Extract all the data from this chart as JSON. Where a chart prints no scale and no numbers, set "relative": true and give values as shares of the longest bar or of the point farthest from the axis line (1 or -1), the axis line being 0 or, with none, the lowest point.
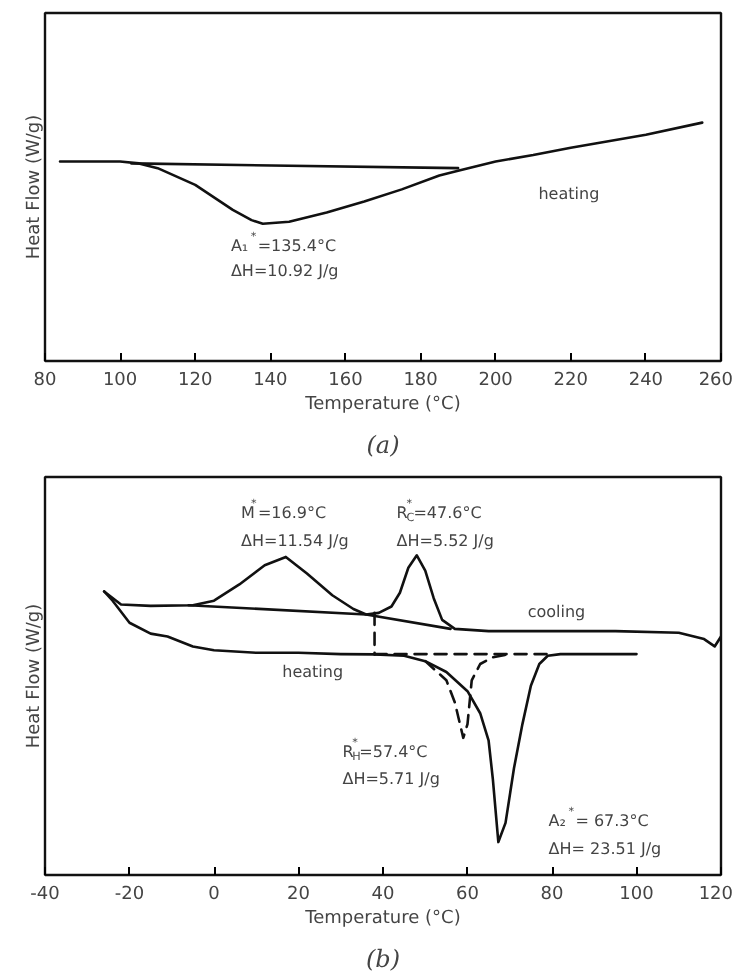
{
  "chart_data": [
    {
      "type": "line",
      "relative": true,
      "xlabel": "Temperature (°C)",
      "ylabel": "Heat Flow (W/g)",
      "xlim": [
        80,
        260
      ],
      "xticks": [
        80,
        100,
        120,
        140,
        160,
        180,
        200,
        220,
        240,
        260
      ],
      "marker": "none",
      "series": [
        {
          "color": "#111111",
          "line_style": "solid",
          "x": [
            84,
            100,
            105,
            110,
            120,
            130,
            135,
            138,
            145,
            155,
            165,
            175,
            185,
            190,
            200,
            210,
            220,
            230,
            240,
            255
          ],
          "values": [
            0.837,
            0.837,
            0.829,
            0.809,
            0.739,
            0.634,
            0.591,
            0.576,
            0.584,
            0.623,
            0.669,
            0.72,
            0.778,
            0.798,
            0.837,
            0.864,
            0.895,
            0.922,
            0.949,
            1.0
          ]
        },
        {
          "color": "#111111",
          "line_style": "solid",
          "x": [
            103,
            190
          ],
          "values": [
            0.829,
            0.809
          ]
        }
      ],
      "annotations": [
        "A₁$^{*}$=135.4°C",
        "ΔH=10.92 J/g",
        "heating",
        "(a)"
      ]
    },
    {
      "type": "line",
      "relative": true,
      "xlabel": "Temperature (°C)",
      "ylabel": "Heat Flow (W/g)",
      "xlim": [
        -40,
        120
      ],
      "xticks": [
        -40,
        -20,
        0,
        20,
        40,
        60,
        80,
        100,
        120
      ],
      "marker": "none",
      "series": [
        {
          "color": "#111111",
          "line_style": "solid",
          "x": [
            120,
            118.5,
            116,
            110,
            95,
            80,
            65,
            57,
            54,
            52,
            50,
            48,
            46,
            44,
            42,
            39,
            36,
            33,
            28,
            22,
            17,
            12,
            6,
            0,
            -5,
            -15,
            -22,
            -26
          ],
          "values": [
            0.746,
            0.715,
            0.738,
            0.758,
            0.763,
            0.763,
            0.763,
            0.77,
            0.798,
            0.866,
            0.952,
            1.0,
            0.961,
            0.883,
            0.84,
            0.82,
            0.815,
            0.832,
            0.875,
            0.943,
            0.995,
            0.969,
            0.909,
            0.858,
            0.844,
            0.842,
            0.846,
            0.887
          ]
        },
        {
          "color": "#111111",
          "line_style": "solid",
          "x": [
            -26,
            -24,
            -20,
            -15,
            -11,
            -5,
            0,
            10,
            20,
            30,
            38,
            45,
            50,
            55,
            60,
            63,
            65,
            66,
            67.3,
            69,
            71,
            73,
            75,
            77,
            79,
            82,
            90,
            100
          ],
          "values": [
            0.887,
            0.858,
            0.789,
            0.755,
            0.746,
            0.715,
            0.703,
            0.695,
            0.695,
            0.691,
            0.69,
            0.686,
            0.669,
            0.635,
            0.575,
            0.506,
            0.42,
            0.3,
            0.103,
            0.163,
            0.334,
            0.472,
            0.592,
            0.66,
            0.686,
            0.691,
            0.691,
            0.691
          ]
        },
        {
          "color": "#111111",
          "line_style": "dashed",
          "x": [
            50,
            55,
            57,
            59,
            60,
            61,
            63,
            66,
            70
          ],
          "values": [
            0.669,
            0.609,
            0.54,
            0.429,
            0.472,
            0.609,
            0.66,
            0.681,
            0.691
          ]
        },
        {
          "color": "#111111",
          "line_style": "dashed",
          "x": [
            38,
            80
          ],
          "values": [
            0.691,
            0.691
          ]
        },
        {
          "color": "#111111",
          "line_style": "dashed",
          "x": [
            38,
            38
          ],
          "values": [
            0.82,
            0.69
          ]
        },
        {
          "color": "#111111",
          "line_style": "solid",
          "x": [
            -6,
            36,
            56
          ],
          "values": [
            0.844,
            0.815,
            0.77
          ]
        }
      ],
      "annotations": [
        "M$^{*}$=16.9°C",
        "ΔH=11.54 J/g",
        "R$_{C}$$^{*}$=47.6°C",
        "ΔH=5.52 J/g",
        "cooling",
        "heating",
        "R$_{H}$$^{*}$=57.4°C",
        "ΔH=5.71 J/g",
        "A₂$^{*}$= 67.3°C",
        "ΔH= 23.51 J/g",
        "(b)"
      ]
    }
  ]
}
